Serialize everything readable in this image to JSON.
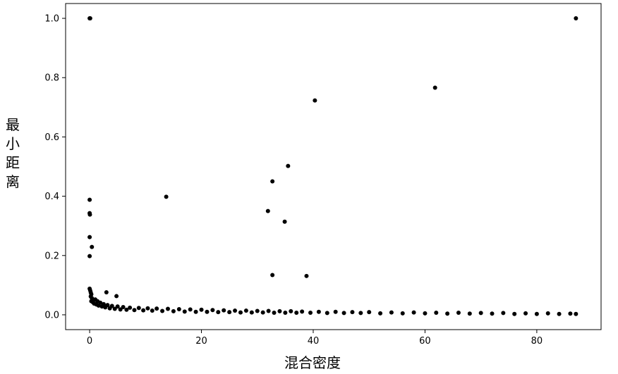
{
  "chart_data": {
    "type": "scatter",
    "title": "",
    "xlabel": "混合密度",
    "ylabel": "最小距离",
    "xlim": [
      -4.3,
      91.5
    ],
    "ylim": [
      -0.05,
      1.05
    ],
    "xticks": [
      0,
      20,
      40,
      60,
      80
    ],
    "xtick_labels": [
      "0",
      "20",
      "40",
      "60",
      "80"
    ],
    "yticks": [
      0.0,
      0.2,
      0.4,
      0.6,
      0.8,
      1.0
    ],
    "ytick_labels": [
      "0.0",
      "0.2",
      "0.4",
      "0.6",
      "0.8",
      "1.0"
    ],
    "grid": false,
    "marker_color": "#000000",
    "outliers": [
      {
        "x": 0.0,
        "y": 1.0
      },
      {
        "x": 0.1,
        "y": 1.0
      },
      {
        "x": 0.0,
        "y": 0.388
      },
      {
        "x": 0.0,
        "y": 0.343
      },
      {
        "x": 0.05,
        "y": 0.338
      },
      {
        "x": 0.0,
        "y": 0.262
      },
      {
        "x": 0.4,
        "y": 0.229
      },
      {
        "x": 0.0,
        "y": 0.198
      },
      {
        "x": 3.0,
        "y": 0.076
      },
      {
        "x": 4.8,
        "y": 0.063
      },
      {
        "x": 13.7,
        "y": 0.398
      },
      {
        "x": 31.9,
        "y": 0.35
      },
      {
        "x": 32.7,
        "y": 0.45
      },
      {
        "x": 32.7,
        "y": 0.134
      },
      {
        "x": 34.9,
        "y": 0.314
      },
      {
        "x": 35.5,
        "y": 0.502
      },
      {
        "x": 38.8,
        "y": 0.131
      },
      {
        "x": 40.3,
        "y": 0.723
      },
      {
        "x": 61.8,
        "y": 0.766
      },
      {
        "x": 87.0,
        "y": 1.0
      }
    ],
    "cluster_near_zero": [
      {
        "x": 0.0,
        "y": 0.088
      },
      {
        "x": 0.1,
        "y": 0.082
      },
      {
        "x": 0.2,
        "y": 0.075
      },
      {
        "x": 0.3,
        "y": 0.069
      },
      {
        "x": 0.2,
        "y": 0.062
      },
      {
        "x": 0.4,
        "y": 0.056
      },
      {
        "x": 0.5,
        "y": 0.051
      },
      {
        "x": 0.3,
        "y": 0.046
      },
      {
        "x": 0.6,
        "y": 0.042
      },
      {
        "x": 0.8,
        "y": 0.038
      },
      {
        "x": 1.0,
        "y": 0.052
      },
      {
        "x": 1.2,
        "y": 0.035
      },
      {
        "x": 1.4,
        "y": 0.046
      },
      {
        "x": 1.6,
        "y": 0.031
      },
      {
        "x": 1.9,
        "y": 0.041
      },
      {
        "x": 2.2,
        "y": 0.028
      },
      {
        "x": 2.5,
        "y": 0.036
      },
      {
        "x": 2.8,
        "y": 0.025
      },
      {
        "x": 3.2,
        "y": 0.033
      },
      {
        "x": 3.6,
        "y": 0.022
      },
      {
        "x": 4.0,
        "y": 0.03
      },
      {
        "x": 4.5,
        "y": 0.02
      },
      {
        "x": 5.0,
        "y": 0.028
      },
      {
        "x": 5.5,
        "y": 0.018
      },
      {
        "x": 6.0,
        "y": 0.026
      },
      {
        "x": 6.6,
        "y": 0.017
      },
      {
        "x": 7.2,
        "y": 0.024
      },
      {
        "x": 8.0,
        "y": 0.016
      },
      {
        "x": 8.8,
        "y": 0.023
      },
      {
        "x": 9.6,
        "y": 0.015
      },
      {
        "x": 10.4,
        "y": 0.022
      },
      {
        "x": 11.2,
        "y": 0.014
      },
      {
        "x": 12.0,
        "y": 0.021
      },
      {
        "x": 13.0,
        "y": 0.013
      },
      {
        "x": 14.0,
        "y": 0.02
      },
      {
        "x": 15.0,
        "y": 0.012
      },
      {
        "x": 16.0,
        "y": 0.019
      },
      {
        "x": 17.0,
        "y": 0.011
      },
      {
        "x": 18.0,
        "y": 0.018
      },
      {
        "x": 19.0,
        "y": 0.01
      },
      {
        "x": 20.0,
        "y": 0.017
      },
      {
        "x": 21.0,
        "y": 0.01
      },
      {
        "x": 22.0,
        "y": 0.016
      },
      {
        "x": 23.0,
        "y": 0.009
      },
      {
        "x": 24.0,
        "y": 0.015
      },
      {
        "x": 25.0,
        "y": 0.009
      },
      {
        "x": 26.0,
        "y": 0.014
      },
      {
        "x": 27.0,
        "y": 0.008
      },
      {
        "x": 28.0,
        "y": 0.014
      },
      {
        "x": 29.0,
        "y": 0.008
      },
      {
        "x": 30.0,
        "y": 0.013
      },
      {
        "x": 31.0,
        "y": 0.008
      },
      {
        "x": 32.0,
        "y": 0.013
      },
      {
        "x": 33.0,
        "y": 0.007
      },
      {
        "x": 34.0,
        "y": 0.012
      },
      {
        "x": 35.0,
        "y": 0.007
      },
      {
        "x": 36.0,
        "y": 0.012
      },
      {
        "x": 37.0,
        "y": 0.007
      },
      {
        "x": 38.0,
        "y": 0.011
      },
      {
        "x": 39.5,
        "y": 0.007
      },
      {
        "x": 41.0,
        "y": 0.01
      },
      {
        "x": 42.5,
        "y": 0.006
      },
      {
        "x": 44.0,
        "y": 0.01
      },
      {
        "x": 45.5,
        "y": 0.006
      },
      {
        "x": 47.0,
        "y": 0.009
      },
      {
        "x": 48.5,
        "y": 0.006
      },
      {
        "x": 50.0,
        "y": 0.009
      },
      {
        "x": 52.0,
        "y": 0.005
      },
      {
        "x": 54.0,
        "y": 0.008
      },
      {
        "x": 56.0,
        "y": 0.005
      },
      {
        "x": 58.0,
        "y": 0.008
      },
      {
        "x": 60.0,
        "y": 0.005
      },
      {
        "x": 62.0,
        "y": 0.007
      },
      {
        "x": 64.0,
        "y": 0.004
      },
      {
        "x": 66.0,
        "y": 0.007
      },
      {
        "x": 68.0,
        "y": 0.004
      },
      {
        "x": 70.0,
        "y": 0.006
      },
      {
        "x": 72.0,
        "y": 0.004
      },
      {
        "x": 74.0,
        "y": 0.006
      },
      {
        "x": 76.0,
        "y": 0.003
      },
      {
        "x": 78.0,
        "y": 0.005
      },
      {
        "x": 80.0,
        "y": 0.003
      },
      {
        "x": 82.0,
        "y": 0.005
      },
      {
        "x": 84.0,
        "y": 0.003
      },
      {
        "x": 86.0,
        "y": 0.004
      },
      {
        "x": 87.0,
        "y": 0.003
      }
    ]
  }
}
